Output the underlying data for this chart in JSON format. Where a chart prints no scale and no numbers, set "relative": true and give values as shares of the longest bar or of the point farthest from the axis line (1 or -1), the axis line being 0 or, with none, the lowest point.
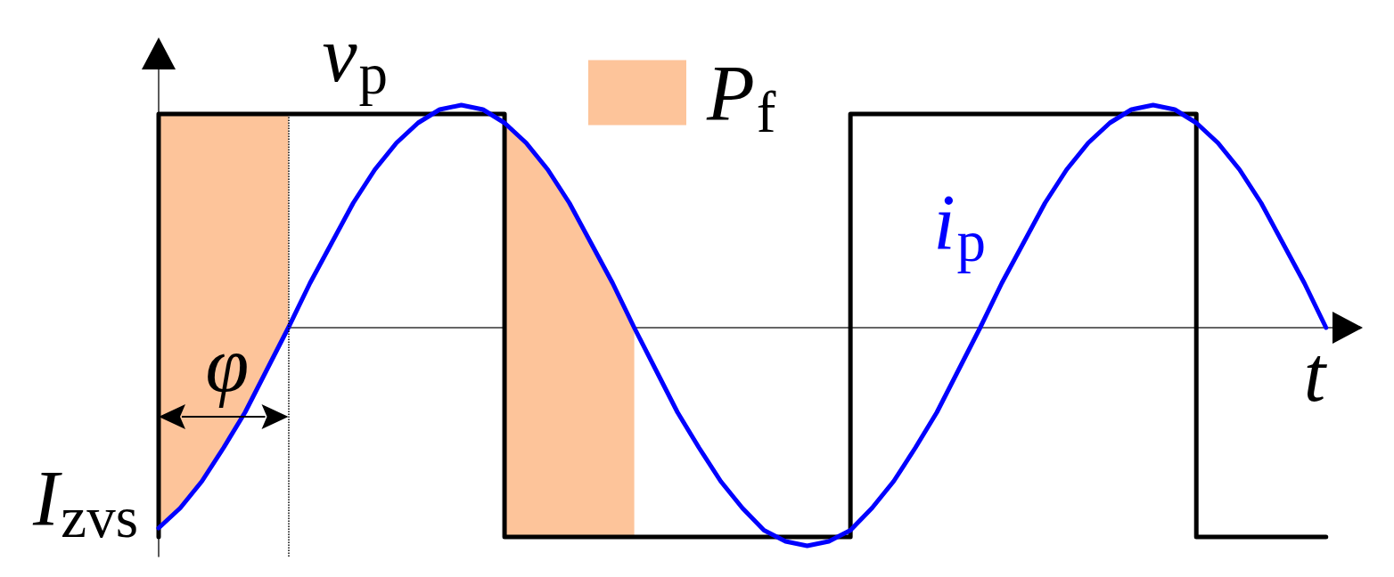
{
  "chart_data": {
    "type": "line",
    "relative": true,
    "xlabel": "t",
    "legend": "top",
    "annotations": [
      "φ",
      "I$_{zvs}$"
    ],
    "categories": [
      null,
      null,
      null,
      null,
      null,
      null,
      null,
      null,
      null,
      null,
      null,
      null,
      null,
      null,
      null,
      null,
      null,
      null,
      null,
      null,
      null,
      null,
      null,
      null,
      null,
      null,
      null,
      null,
      null,
      null,
      null,
      null,
      null,
      null,
      null,
      null,
      null,
      null,
      null,
      null,
      null,
      null,
      null,
      null,
      null,
      null,
      null,
      null,
      null,
      null,
      null,
      null,
      null,
      null,
      null,
      null
    ],
    "series": [
      {
        "name": "P$_{f}$",
        "type": "area",
        "color": "#fdc49a",
        "values": [
          0.96,
          0.96,
          0.96,
          0.96,
          0.96,
          0.96,
          0.96,
          null,
          null,
          null,
          null,
          null,
          null,
          null,
          null,
          null,
          0.92,
          0.83,
          0.71,
          0.56,
          0.38,
          0.2,
          0,
          null,
          null,
          null,
          null,
          null,
          null,
          null,
          null,
          null,
          null,
          null,
          null,
          null,
          null,
          null,
          null,
          null,
          null,
          null,
          null,
          null,
          null,
          null,
          null,
          null,
          null,
          null,
          null,
          null,
          null,
          null,
          null,
          null
        ]
      },
      {
        "type": "area",
        "color": "#fdc49a",
        "values": [
          -0.9,
          -0.81,
          -0.69,
          -0.54,
          -0.38,
          -0.19,
          0,
          null,
          null,
          null,
          null,
          null,
          null,
          null,
          null,
          null,
          -0.94,
          -0.94,
          -0.94,
          -0.94,
          -0.94,
          -0.94,
          -0.94,
          null,
          null,
          null,
          null,
          null,
          null,
          null,
          null,
          null,
          null,
          null,
          null,
          null,
          null,
          null,
          null,
          null,
          null,
          null,
          null,
          null,
          null,
          null,
          null,
          null,
          null,
          null,
          null,
          null,
          null,
          null,
          null,
          null
        ]
      },
      {
        "name": "v$_{p}$",
        "type": "step",
        "color": "#000000",
        "values": [
          -0.94,
          0.96,
          0.96,
          0.96,
          0.96,
          0.96,
          0.96,
          0.96,
          0.96,
          0.96,
          0.96,
          0.96,
          0.96,
          0.96,
          0.96,
          0.96,
          0.96,
          -0.94,
          -0.94,
          -0.94,
          -0.94,
          -0.94,
          -0.94,
          -0.94,
          -0.94,
          -0.94,
          -0.94,
          -0.94,
          -0.94,
          -0.94,
          -0.94,
          -0.94,
          -0.94,
          0.96,
          0.96,
          0.96,
          0.96,
          0.96,
          0.96,
          0.96,
          0.96,
          0.96,
          0.96,
          0.96,
          0.96,
          0.96,
          0.96,
          0.96,
          0.96,
          -0.94,
          -0.94,
          -0.94,
          -0.94,
          -0.94,
          -0.94,
          null
        ]
      },
      {
        "name": "i$_{p}$",
        "color": "#0000ff",
        "values": [
          -0.9,
          -0.81,
          -0.69,
          -0.54,
          -0.38,
          -0.19,
          0,
          0.2,
          0.38,
          0.56,
          0.71,
          0.83,
          0.92,
          0.98,
          1,
          0.98,
          0.92,
          0.83,
          0.71,
          0.56,
          0.38,
          0.2,
          0,
          -0.19,
          -0.38,
          -0.54,
          -0.69,
          -0.81,
          -0.91,
          -0.96,
          -0.98,
          -0.96,
          -0.91,
          -0.81,
          -0.69,
          -0.54,
          -0.38,
          -0.19,
          0,
          0.2,
          0.38,
          0.56,
          0.71,
          0.83,
          0.92,
          0.98,
          1,
          0.98,
          0.92,
          0.83,
          0.71,
          0.56,
          0.38,
          0.2,
          0,
          null
        ]
      }
    ]
  }
}
